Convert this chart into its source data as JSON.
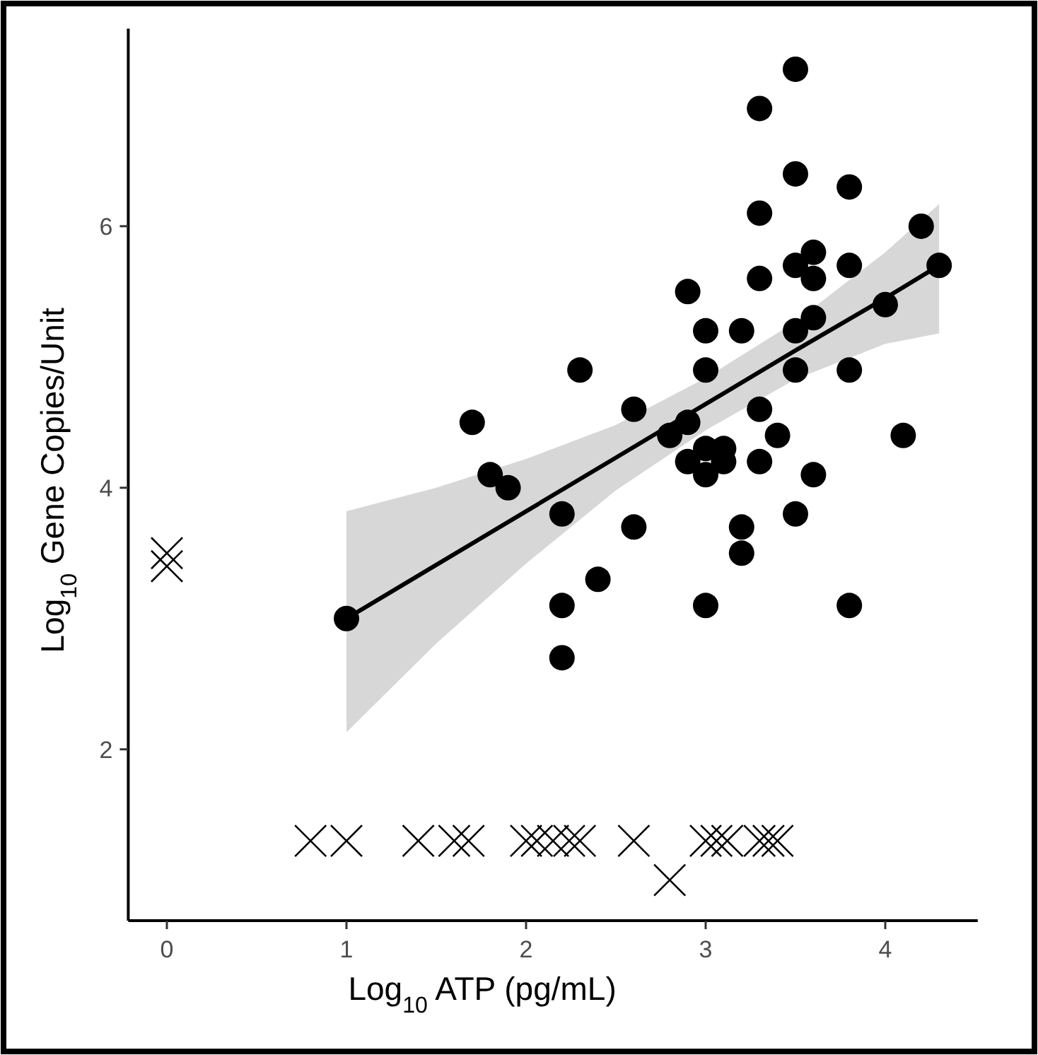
{
  "chart_data": {
    "type": "scatter",
    "xlabel": "Log$_{10}$ ATP (pg/mL)",
    "ylabel": "Log$_{10}$ Gene Copies/Unit",
    "xlim": [
      -0.215,
      4.515
    ],
    "ylim": [
      0.69,
      7.51
    ],
    "xticks": [
      0,
      1,
      2,
      3,
      4
    ],
    "yticks": [
      2,
      4,
      6
    ],
    "grid": false,
    "series": [
      {
        "marker": "circle",
        "color": "#000000",
        "x": [
          1.0,
          1.7,
          1.8,
          1.9,
          2.2,
          2.2,
          2.2,
          2.3,
          2.4,
          2.6,
          2.6,
          2.8,
          2.9,
          2.9,
          2.9,
          3.0,
          3.0,
          3.0,
          3.0,
          3.0,
          3.1,
          3.1,
          3.2,
          3.2,
          3.2,
          3.3,
          3.3,
          3.3,
          3.3,
          3.3,
          3.4,
          3.5,
          3.5,
          3.5,
          3.5,
          3.5,
          3.5,
          3.6,
          3.6,
          3.6,
          3.6,
          3.8,
          3.8,
          3.8,
          3.8,
          4.0,
          4.1,
          4.2,
          4.3
        ],
        "values": [
          3.0,
          4.5,
          4.1,
          4.0,
          3.8,
          3.1,
          2.7,
          4.9,
          3.3,
          4.6,
          3.7,
          4.4,
          5.5,
          4.5,
          4.2,
          5.2,
          4.9,
          4.3,
          4.1,
          3.1,
          4.3,
          4.2,
          5.2,
          3.7,
          3.5,
          6.9,
          6.1,
          5.6,
          4.6,
          4.2,
          4.4,
          7.2,
          6.4,
          5.7,
          5.2,
          4.9,
          3.8,
          5.8,
          5.6,
          5.3,
          4.1,
          6.3,
          5.7,
          4.9,
          3.1,
          5.4,
          4.4,
          6.0,
          5.7
        ]
      },
      {
        "marker": "cross",
        "color": "#000000",
        "x": [
          0,
          0,
          0.8,
          1.0,
          1.4,
          1.6,
          1.68,
          2.0,
          2.06,
          2.15,
          2.24,
          2.3,
          2.6,
          2.8,
          3.0,
          3.06,
          3.12,
          3.3,
          3.35,
          3.4
        ],
        "values": [
          3.5,
          3.4,
          1.3,
          1.3,
          1.3,
          1.3,
          1.3,
          1.3,
          1.3,
          1.3,
          1.3,
          1.3,
          1.3,
          1.0,
          1.3,
          1.3,
          1.3,
          1.3,
          1.3,
          1.3
        ]
      },
      {
        "type": "line",
        "color": "#000000",
        "line_style": "solid",
        "marker": "none",
        "x": [
          1,
          1.5,
          2,
          2.5,
          3,
          3.5,
          4,
          4.3
        ],
        "values": [
          3.0,
          3.41,
          3.82,
          4.23,
          4.64,
          5.05,
          5.45,
          5.7
        ],
        "lower": [
          2.13,
          2.81,
          3.42,
          3.98,
          4.44,
          4.83,
          5.1,
          5.18
        ],
        "upper": [
          3.82,
          4.0,
          4.22,
          4.48,
          4.84,
          5.27,
          5.8,
          6.17
        ]
      }
    ]
  }
}
